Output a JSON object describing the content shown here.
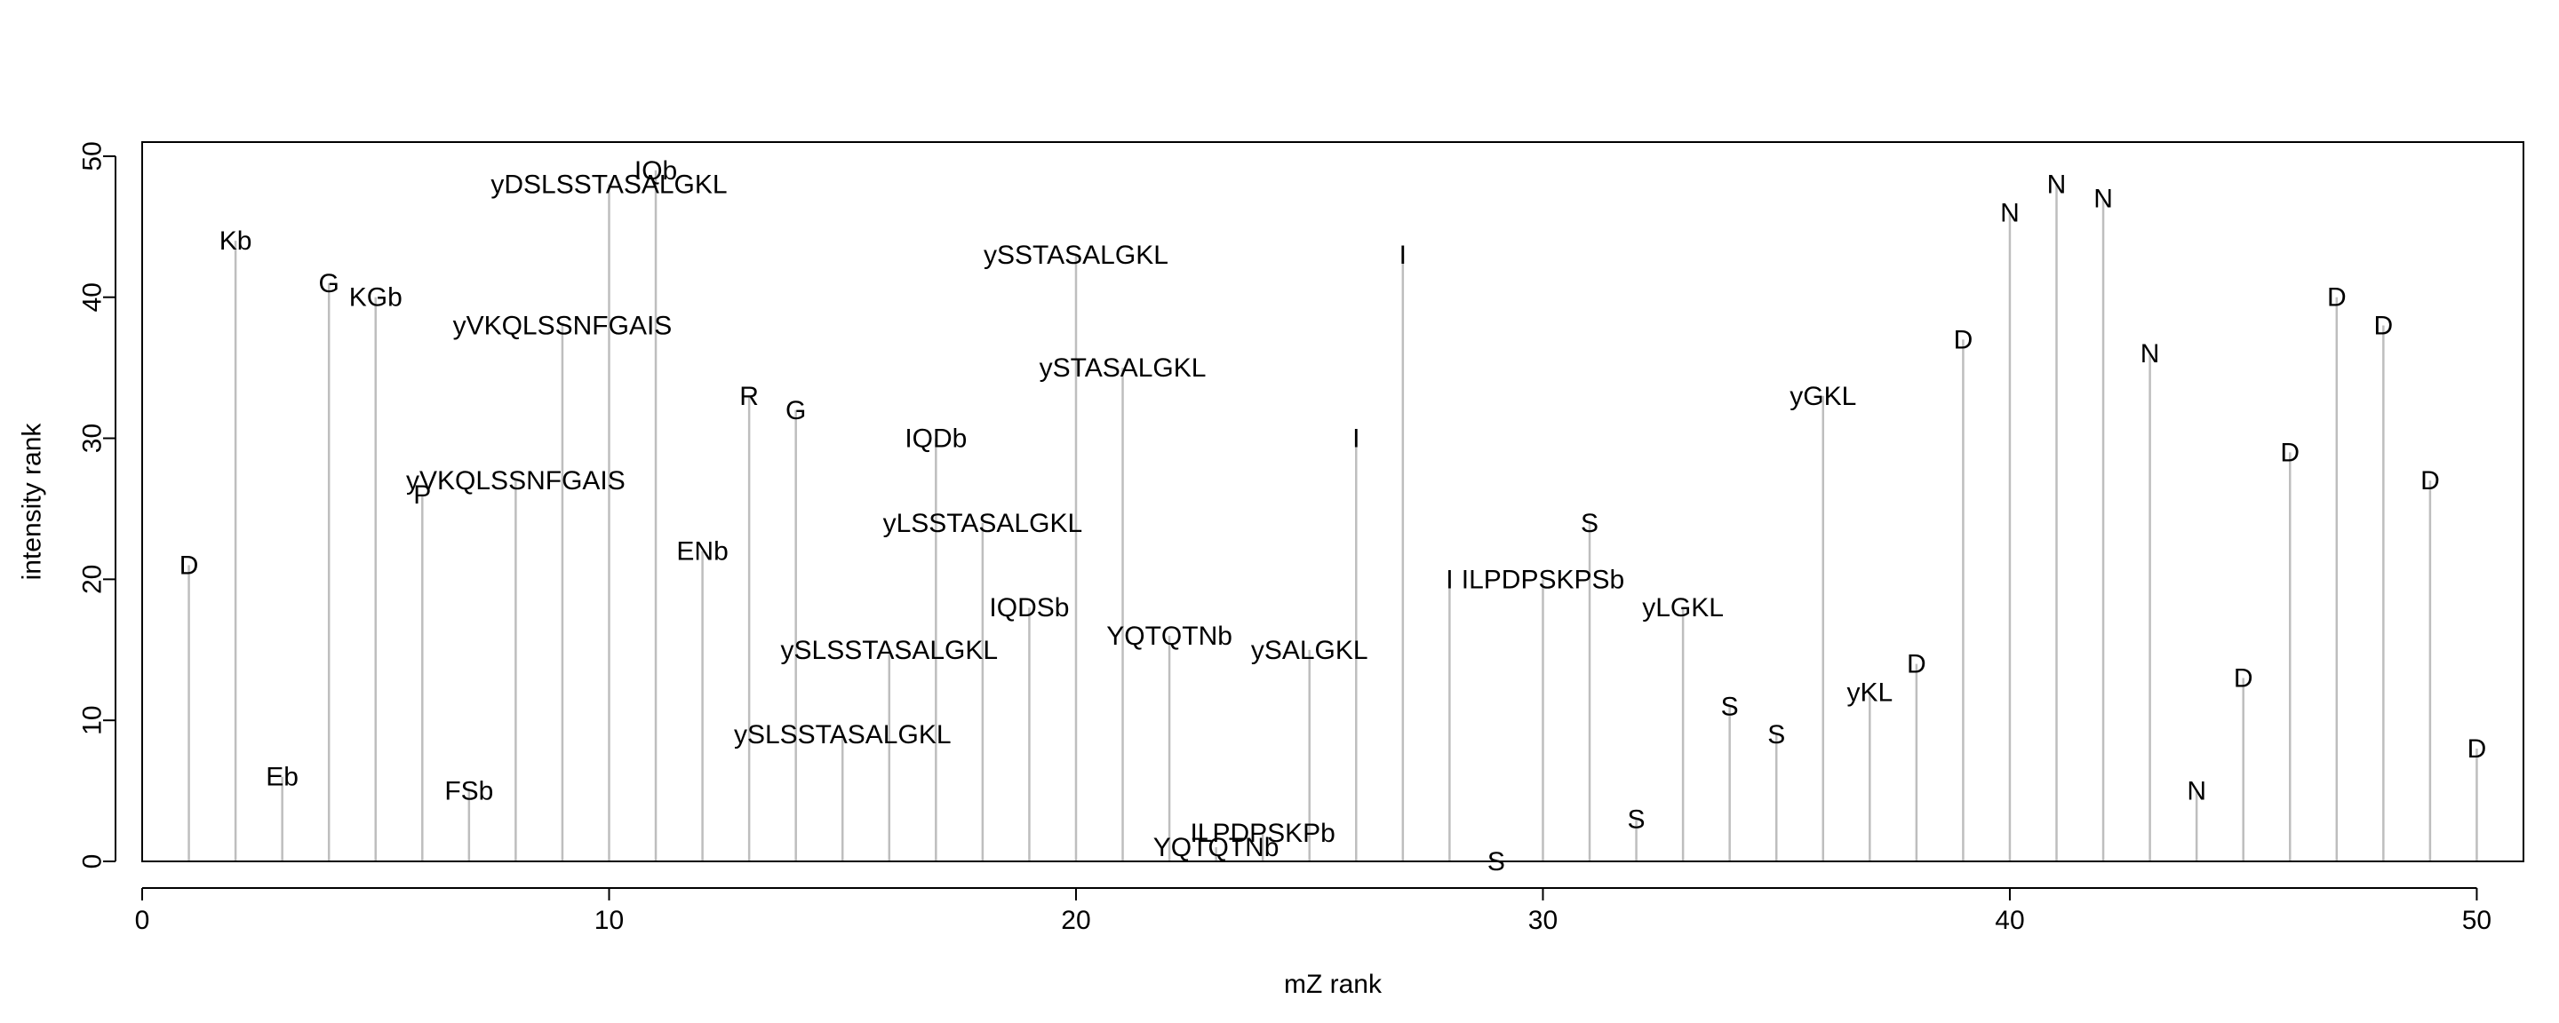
{
  "chart_data": {
    "type": "scatter",
    "style": "vertical stems with text labels",
    "xlabel": "mZ rank",
    "ylabel": "intensity rank",
    "xlim": [
      0,
      51
    ],
    "ylim": [
      0,
      51
    ],
    "xticks": [
      0,
      10,
      20,
      30,
      40,
      50
    ],
    "yticks": [
      0,
      10,
      20,
      30,
      40,
      50
    ],
    "grid": false,
    "stem_color": "#bebebe",
    "points": [
      {
        "x": 1,
        "y": 21,
        "label": "D"
      },
      {
        "x": 2,
        "y": 44,
        "label": "Kb"
      },
      {
        "x": 3,
        "y": 6,
        "label": "Eb"
      },
      {
        "x": 4,
        "y": 41,
        "label": "G"
      },
      {
        "x": 5,
        "y": 40,
        "label": "KGb"
      },
      {
        "x": 6,
        "y": 26,
        "label": "P"
      },
      {
        "x": 7,
        "y": 5,
        "label": "FSb"
      },
      {
        "x": 8,
        "y": 27,
        "label": "yVKQLSSNFGAIS"
      },
      {
        "x": 9,
        "y": 38,
        "label": "yVKQLSSNFGAIS"
      },
      {
        "x": 10,
        "y": 48,
        "label": "yDSLSSTASALGKL"
      },
      {
        "x": 11,
        "y": 49,
        "label": "IQb"
      },
      {
        "x": 12,
        "y": 22,
        "label": "ENb"
      },
      {
        "x": 13,
        "y": 33,
        "label": "R"
      },
      {
        "x": 14,
        "y": 32,
        "label": "G"
      },
      {
        "x": 15,
        "y": 9,
        "label": "ySLSSTASALGKL"
      },
      {
        "x": 16,
        "y": 15,
        "label": "ySLSSTASALGKL"
      },
      {
        "x": 17,
        "y": 30,
        "label": "IQDb"
      },
      {
        "x": 18,
        "y": 24,
        "label": "yLSSTASALGKL"
      },
      {
        "x": 19,
        "y": 18,
        "label": "IQDSb"
      },
      {
        "x": 20,
        "y": 43,
        "label": "ySSTASALGKL"
      },
      {
        "x": 21,
        "y": 35,
        "label": "ySTASALGKL"
      },
      {
        "x": 22,
        "y": 16,
        "label": "YQTQTNb"
      },
      {
        "x": 23,
        "y": 1,
        "label": "YQTQTNb"
      },
      {
        "x": 24,
        "y": 2,
        "label": "ILPDPSKPb"
      },
      {
        "x": 25,
        "y": 15,
        "label": "ySALGKL"
      },
      {
        "x": 26,
        "y": 30,
        "label": "I"
      },
      {
        "x": 27,
        "y": 43,
        "label": "I"
      },
      {
        "x": 28,
        "y": 20,
        "label": "I"
      },
      {
        "x": 29,
        "y": 0,
        "label": "S"
      },
      {
        "x": 30,
        "y": 20,
        "label": "ILPDPSKPSb"
      },
      {
        "x": 31,
        "y": 24,
        "label": "S"
      },
      {
        "x": 32,
        "y": 3,
        "label": "S"
      },
      {
        "x": 33,
        "y": 18,
        "label": "yLGKL"
      },
      {
        "x": 34,
        "y": 11,
        "label": "S"
      },
      {
        "x": 35,
        "y": 9,
        "label": "S"
      },
      {
        "x": 36,
        "y": 33,
        "label": "yGKL"
      },
      {
        "x": 37,
        "y": 12,
        "label": "yKL"
      },
      {
        "x": 38,
        "y": 14,
        "label": "D"
      },
      {
        "x": 39,
        "y": 37,
        "label": "D"
      },
      {
        "x": 40,
        "y": 46,
        "label": "N"
      },
      {
        "x": 41,
        "y": 48,
        "label": "N"
      },
      {
        "x": 42,
        "y": 47,
        "label": "N"
      },
      {
        "x": 43,
        "y": 36,
        "label": "N"
      },
      {
        "x": 44,
        "y": 5,
        "label": "N"
      },
      {
        "x": 45,
        "y": 13,
        "label": "D"
      },
      {
        "x": 46,
        "y": 29,
        "label": "D"
      },
      {
        "x": 47,
        "y": 40,
        "label": "D"
      },
      {
        "x": 48,
        "y": 38,
        "label": "D"
      },
      {
        "x": 49,
        "y": 27,
        "label": "D"
      },
      {
        "x": 50,
        "y": 8,
        "label": "D"
      }
    ]
  }
}
